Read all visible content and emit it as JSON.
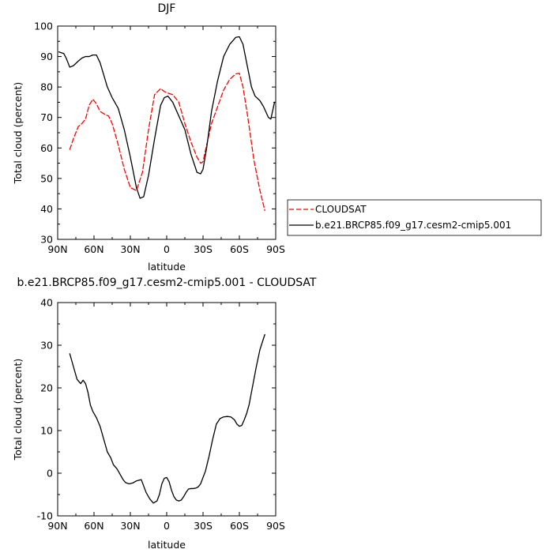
{
  "chart_data": [
    {
      "type": "line",
      "title": "DJF",
      "xlabel": "latitude",
      "ylabel": "Total cloud (percent)",
      "xlim": [
        90,
        -90
      ],
      "ylim": [
        30,
        100
      ],
      "xticks": [
        90,
        60,
        30,
        0,
        -30,
        -60,
        -90
      ],
      "xtick_labels": [
        "90N",
        "60N",
        "30N",
        "0",
        "30S",
        "60S",
        "90S"
      ],
      "yticks": [
        30,
        40,
        50,
        60,
        70,
        80,
        90,
        100
      ],
      "legend_position": "right",
      "series": [
        {
          "name": "CLOUDSAT",
          "color": "#ff0000",
          "dash": "dashed",
          "x": [
            80,
            77,
            73,
            70,
            67,
            64,
            61,
            58,
            55,
            51,
            48,
            45,
            40,
            35,
            30,
            25,
            20,
            15,
            10,
            5,
            2,
            -1,
            -5,
            -10,
            -15,
            -20,
            -25,
            -28,
            -30,
            -33,
            -37,
            -42,
            -47,
            -52,
            -57,
            -60,
            -63,
            -67,
            -72,
            -77,
            -81
          ],
          "y": [
            59.5,
            63,
            67,
            68,
            69.5,
            74,
            76,
            74.5,
            72,
            71,
            70.5,
            68,
            61,
            53,
            47,
            46,
            52,
            66,
            77.5,
            79.5,
            78.5,
            78,
            77.5,
            75,
            68,
            62,
            57,
            55,
            55.5,
            61,
            68,
            73.5,
            79,
            82.5,
            84.3,
            84.5,
            80,
            70,
            56,
            46,
            39.5
          ]
        },
        {
          "name": "b.e21.BRCP85.f09_g17.cesm2-cmip5.001",
          "color": "#000000",
          "dash": "solid",
          "x": [
            89,
            85,
            83,
            80,
            77,
            73,
            70,
            67,
            64,
            61,
            58,
            55,
            52,
            49,
            45,
            40,
            35,
            30,
            25,
            22,
            19,
            15,
            10,
            5,
            2,
            -1,
            -5,
            -10,
            -15,
            -20,
            -25,
            -28,
            -30,
            -33,
            -37,
            -42,
            -47,
            -52,
            -57,
            -60,
            -63,
            -67,
            -70,
            -73,
            -77,
            -80,
            -84,
            -86,
            -89
          ],
          "y": [
            91.5,
            91,
            89.5,
            86.5,
            87,
            88.5,
            89.5,
            90,
            90,
            90.5,
            90.5,
            88,
            84,
            80,
            76.5,
            73,
            66,
            57,
            47,
            43.5,
            44,
            51,
            63,
            74,
            76.5,
            77,
            75,
            70.5,
            66,
            58,
            52,
            51.5,
            53,
            60,
            72,
            82,
            90,
            94,
            96.3,
            96.5,
            94,
            86,
            80,
            77,
            75.5,
            73.5,
            70,
            69.5,
            75
          ]
        }
      ]
    },
    {
      "type": "line",
      "title": "b.e21.BRCP85.f09_g17.cesm2-cmip5.001 - CLOUDSAT",
      "xlabel": "latitude",
      "ylabel": "Total cloud (percent)",
      "xlim": [
        90,
        -90
      ],
      "ylim": [
        -10,
        40
      ],
      "xticks": [
        90,
        60,
        30,
        0,
        -30,
        -60,
        -90
      ],
      "xtick_labels": [
        "90N",
        "60N",
        "30N",
        "0",
        "30S",
        "60S",
        "90S"
      ],
      "yticks": [
        -10,
        0,
        10,
        20,
        30,
        40
      ],
      "series": [
        {
          "color": "#000000",
          "dash": "solid",
          "x": [
            80,
            77,
            74,
            71,
            69,
            67,
            65,
            63,
            61,
            58,
            55,
            52,
            49,
            46,
            44,
            41,
            38,
            36,
            34,
            31,
            28,
            25,
            21,
            19,
            17,
            14,
            11,
            8,
            6,
            4,
            2,
            0,
            -2,
            -4,
            -6,
            -8,
            -10,
            -12,
            -14,
            -16,
            -18,
            -20,
            -22,
            -24,
            -26,
            -28,
            -30,
            -32,
            -35,
            -38,
            -41,
            -44,
            -47,
            -50,
            -53,
            -56,
            -58,
            -60,
            -62,
            -64,
            -66,
            -68,
            -71,
            -74,
            -77,
            -81
          ],
          "y": [
            28,
            25,
            22,
            21,
            21.8,
            21,
            19,
            16,
            14.5,
            13,
            11,
            8,
            5,
            3.5,
            2,
            1,
            -0.5,
            -1.5,
            -2.2,
            -2.5,
            -2.3,
            -1.8,
            -1.5,
            -3,
            -4.5,
            -6,
            -7,
            -6.5,
            -5,
            -2.5,
            -1.2,
            -1,
            -2,
            -4,
            -5.5,
            -6.3,
            -6.5,
            -6.3,
            -5.5,
            -4.5,
            -3.7,
            -3.6,
            -3.6,
            -3.5,
            -3.2,
            -2.5,
            -1,
            0.5,
            4,
            8,
            11.5,
            12.8,
            13.2,
            13.3,
            13.2,
            12.5,
            11.5,
            11,
            11.2,
            12.5,
            14,
            16,
            20.5,
            25,
            29,
            32.5
          ]
        }
      ]
    }
  ]
}
